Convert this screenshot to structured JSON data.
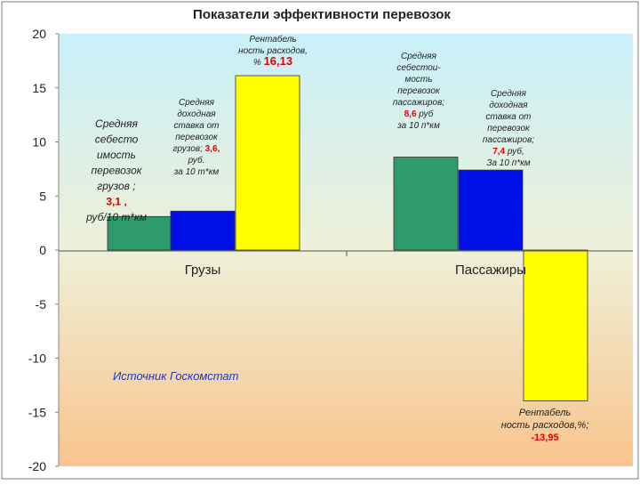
{
  "chart_data": {
    "type": "bar",
    "title": "Показатели эффективности перевозок",
    "categories": [
      "Грузы",
      "Пассажиры"
    ],
    "ylim": [
      -20,
      20
    ],
    "yticks": [
      20,
      15,
      10,
      5,
      0,
      -5,
      -10,
      -15,
      -20
    ],
    "grid": false,
    "bars": [
      {
        "category": "Грузы",
        "value": 3.1,
        "color": "#2E9B6A"
      },
      {
        "category": "Грузы",
        "value": 3.6,
        "color": "#0010E8"
      },
      {
        "category": "Грузы",
        "value": 16.13,
        "color": "#FFFF00"
      },
      {
        "category": "Пассажиры",
        "value": 8.6,
        "color": "#2E9B6A"
      },
      {
        "category": "Пассажиры",
        "value": 7.4,
        "color": "#0010E8"
      },
      {
        "category": "Пассажиры",
        "value": -13.95,
        "color": "#FFFF00"
      }
    ],
    "annotations": [
      {
        "lines": [
          "Средняя",
          "себесто",
          "имость",
          "перевозок",
          "грузов ;"
        ],
        "highlight": "3,1 ,",
        "tail": [
          "руб/10 т*км"
        ]
      },
      {
        "lines": [
          "Средняя",
          "доходная",
          "ставка от",
          "перевозок"
        ],
        "lead": "грузов;",
        "highlight": "3,6,",
        "tail": [
          "руб.",
          "за 10 т*км"
        ]
      },
      {
        "lines": [
          "Рентабель",
          "ность расходов,"
        ],
        "lead": "%",
        "highlight": "16,13",
        "tail": []
      },
      {
        "lines": [
          "Средняя",
          "себестои-",
          "мость",
          "перевозок",
          "пассажиров;"
        ],
        "highlight": "8,6",
        "trail": "руб",
        "tail": [
          "за 10 п*км"
        ]
      },
      {
        "lines": [
          "Средняя",
          "доходная",
          "ставка от",
          "перевозок",
          "пассажиров;"
        ],
        "highlight": "7,4",
        "trail": "руб,",
        "tail": [
          "За 10 п*км"
        ]
      },
      {
        "lines": [
          "Рентабель",
          "ность расходов,%;"
        ],
        "highlight": "-13,95",
        "tail": []
      }
    ],
    "source_note": "Источник Госкомстат",
    "colors": {
      "plot_top": "#C8F0FA",
      "plot_bottom": "#FAC48C",
      "highlight": "#E00000",
      "source": "#1A3AC8"
    }
  }
}
